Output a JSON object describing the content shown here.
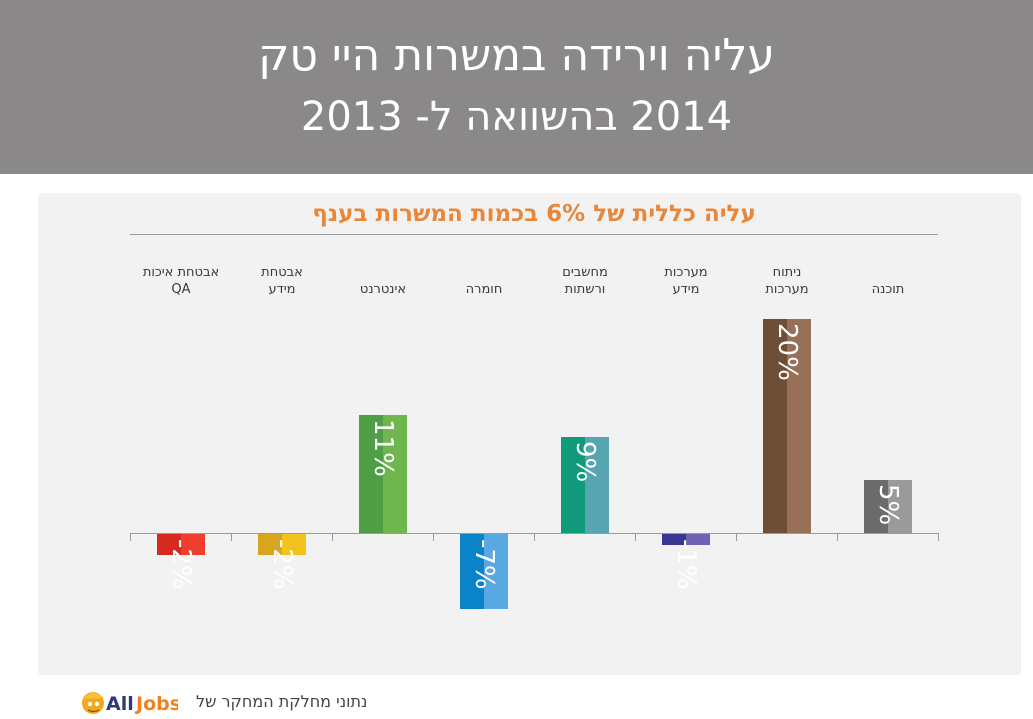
{
  "header": {
    "title_line1": "עליה וירידה במשרות היי טק",
    "title_line2": "2014 בהשוואה ל- 2013"
  },
  "chart_data": {
    "type": "bar",
    "title": "עליה כללית של 6% בכמות המשרות בענף",
    "categories": [
      [
        "תוכנה"
      ],
      [
        "ניתוח",
        "מערכות"
      ],
      [
        "מערכות",
        "מידע"
      ],
      [
        "מחשבים",
        "ורשתות"
      ],
      [
        "חומרה"
      ],
      [
        "אינטרנט"
      ],
      [
        "אבטחת",
        "מידע"
      ],
      [
        "אבטחת איכות",
        "QA"
      ]
    ],
    "values": [
      5,
      20,
      -1,
      9,
      -7,
      11,
      -2,
      -2
    ],
    "value_labels": [
      "5%",
      "20%",
      "-1%",
      "9%",
      "-7%",
      "11%",
      "-2%",
      "-2%"
    ],
    "colors": [
      [
        "#6b6b6b",
        "#9a9a9a"
      ],
      [
        "#6f4e37",
        "#987058"
      ],
      [
        "#3a3693",
        "#6f63b5"
      ],
      [
        "#0f9a7a",
        "#57a5b0"
      ],
      [
        "#0a84c8",
        "#5aa8e2"
      ],
      [
        "#4f9d44",
        "#6fb64f"
      ],
      [
        "#d8a520",
        "#f4c21c"
      ],
      [
        "#d62a20",
        "#ef3e2e"
      ]
    ],
    "ylim": [
      -7.5,
      20
    ],
    "grid": false,
    "legend": "none",
    "axis_direction": "rtl"
  },
  "footer": {
    "source_text": "נתוני מחלקת המחקר של",
    "logo_text": "AllJobs"
  }
}
